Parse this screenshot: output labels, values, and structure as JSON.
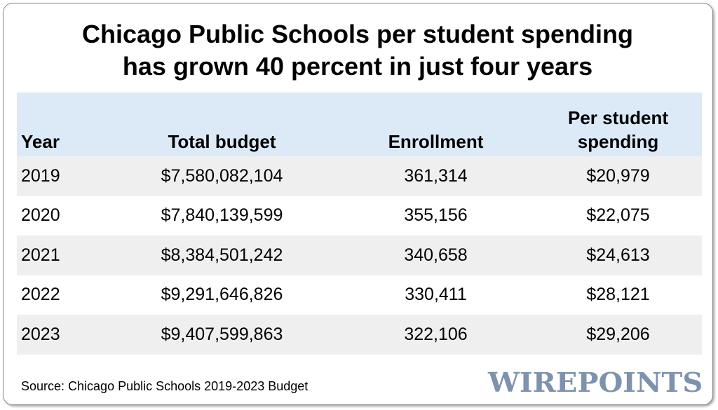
{
  "title_line1": "Chicago Public Schools per student spending",
  "title_line2": "has grown 40 percent in just four years",
  "chart_data": {
    "type": "table",
    "columns": [
      "Year",
      "Total budget",
      "Enrollment",
      "Per student spending"
    ],
    "rows": [
      [
        "2019",
        "$7,580,082,104",
        "361,314",
        "$20,979"
      ],
      [
        "2020",
        "$7,840,139,599",
        "355,156",
        "$22,075"
      ],
      [
        "2021",
        "$8,384,501,242",
        "340,658",
        "$24,613"
      ],
      [
        "2022",
        "$9,291,646,826",
        "330,411",
        "$28,121"
      ],
      [
        "2023",
        "$9,407,599,863",
        "322,106",
        "$29,206"
      ]
    ]
  },
  "header_per_student_line1": "Per student",
  "header_per_student_line2": "spending",
  "source": "Source: Chicago Public Schools 2019-2023 Budget",
  "brand": "WIREPOINTS",
  "colors": {
    "header_bg": "#dce9f6",
    "shaded_row_bg": "#efefef",
    "brand": "#7d92ad"
  }
}
